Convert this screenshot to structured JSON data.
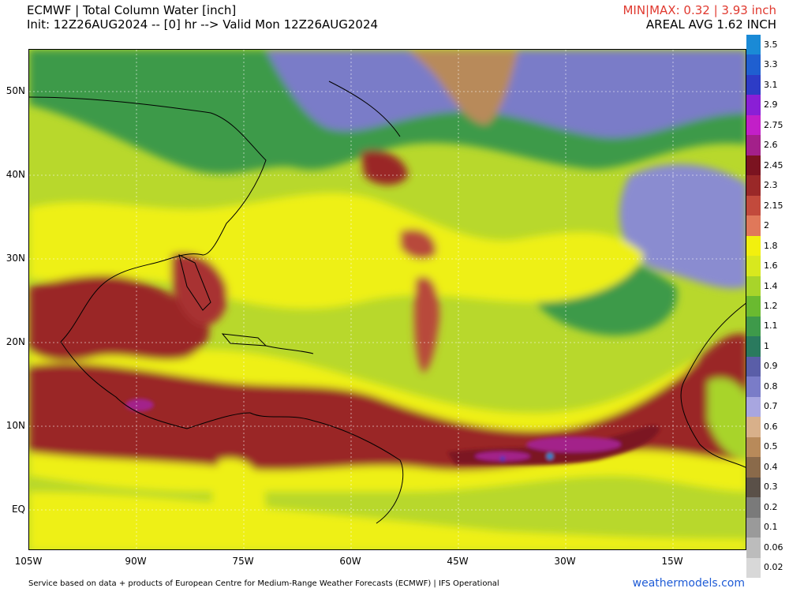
{
  "header": {
    "title": "ECMWF | Total Column Water [inch]",
    "init": "Init: 12Z26AUG2024 -- [0] hr --> Valid Mon 12Z26AUG2024",
    "minmax": "MIN|MAX: 0.32 | 3.93 inch",
    "areal_avg": "AREAL AVG 1.62 INCH"
  },
  "map": {
    "lat_labels": [
      "50N",
      "40N",
      "30N",
      "20N",
      "10N",
      "EQ"
    ],
    "lon_labels": [
      "105W",
      "90W",
      "75W",
      "60W",
      "45W",
      "30W",
      "15W"
    ]
  },
  "colorbar": {
    "levels": [
      {
        "label": "3.5",
        "color": "#1a8ad6"
      },
      {
        "label": "3.3",
        "color": "#1f5fd0"
      },
      {
        "label": "3.1",
        "color": "#2d3cc6"
      },
      {
        "label": "2.9",
        "color": "#8a1fd6"
      },
      {
        "label": "2.75",
        "color": "#c21fc8"
      },
      {
        "label": "2.6",
        "color": "#a3208a"
      },
      {
        "label": "2.45",
        "color": "#7b1320"
      },
      {
        "label": "2.3",
        "color": "#9a2828"
      },
      {
        "label": "2.15",
        "color": "#c24a3c"
      },
      {
        "label": "2",
        "color": "#e0785a"
      },
      {
        "label": "1.8",
        "color": "#f2f00e"
      },
      {
        "label": "1.6",
        "color": "#d8e81e"
      },
      {
        "label": "1.4",
        "color": "#a8d42a"
      },
      {
        "label": "1.2",
        "color": "#6aba30"
      },
      {
        "label": "1.1",
        "color": "#3e9a4a"
      },
      {
        "label": "1",
        "color": "#2a7a5e"
      },
      {
        "label": "0.9",
        "color": "#5a5ea8"
      },
      {
        "label": "0.8",
        "color": "#7a7cc8"
      },
      {
        "label": "0.7",
        "color": "#a8a6e0"
      },
      {
        "label": "0.6",
        "color": "#d8b08a"
      },
      {
        "label": "0.5",
        "color": "#b88a5a"
      },
      {
        "label": "0.4",
        "color": "#8a6a4a"
      },
      {
        "label": "0.3",
        "color": "#5a5048"
      },
      {
        "label": "0.2",
        "color": "#7a7a7a"
      },
      {
        "label": "0.1",
        "color": "#9a9a9a"
      },
      {
        "label": "0.06",
        "color": "#bcbcbc"
      },
      {
        "label": "0.02",
        "color": "#d8d8d8"
      }
    ]
  },
  "footer": {
    "credit": "Service based on data + products of European Centre for Medium-Range Weather Forecasts (ECMWF) | IFS Operational",
    "site": "weathermodels.com"
  }
}
